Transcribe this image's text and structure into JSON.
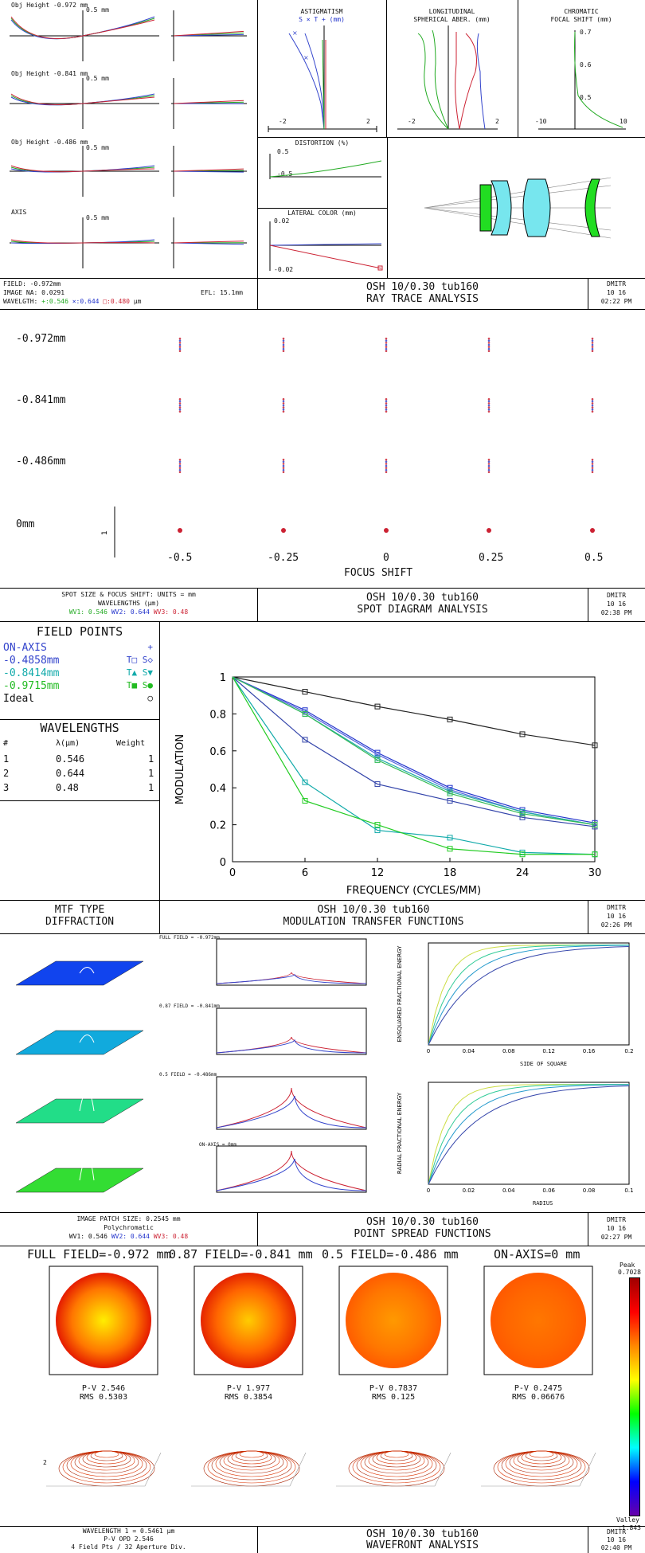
{
  "ray_trace": {
    "fan_labels": [
      "Obj Height -0.972 mm",
      "Obj Height -0.841 mm",
      "Obj Height -0.486 mm",
      "AXIS"
    ],
    "fan_scale": "0.5 mm",
    "astig": {
      "title": "ASTIGMATISM",
      "sub": "S × T + (mm)",
      "ticks": [
        "-2",
        "2"
      ]
    },
    "sph": {
      "title1": "LONGITUDINAL",
      "title2": "SPHERICAL ABER. (mm)",
      "ticks": [
        "-2",
        "2"
      ]
    },
    "chrom": {
      "title1": "CHROMATIC",
      "title2": "FOCAL SHIFT (mm)",
      "ticks": [
        "-10",
        "10"
      ],
      "yticks": [
        "0.7",
        "0.6",
        "0.5"
      ]
    },
    "distortion": {
      "title": "DISTORTION (%)",
      "ticks": [
        "0.5",
        "-0.5"
      ]
    },
    "lateral": {
      "title": "LATERAL COLOR (mm)",
      "ticks": [
        "0.02",
        "-0.02"
      ]
    },
    "footer": {
      "field": "FIELD: -0.972mm",
      "na": "IMAGE NA: 0.0291",
      "efl": "EFL: 15.1mm",
      "wl_prefix": "WAVELGTH:",
      "wl1": "+:0.546",
      "wl2": "×:0.644",
      "wl3": "□:0.480",
      "wl_unit": "μm",
      "title1": "OSH 10/0.30 tub160",
      "title2": "RAY TRACE ANALYSIS",
      "user": "DMITR",
      "date": "10 16",
      "time": "02:22 PM"
    }
  },
  "spot": {
    "rows": [
      "-0.972mm",
      "-0.841mm",
      "-0.486mm",
      "0mm"
    ],
    "xvals": [
      "-0.5",
      "-0.25",
      "0",
      "0.25",
      "0.5"
    ],
    "xlabel": "FOCUS SHIFT",
    "scale": "1",
    "footer": {
      "l1": "SPOT SIZE & FOCUS SHIFT: UNITS = mm",
      "l2": "WAVELENGTHS (μm)",
      "wv1": "WV1: 0.546",
      "wv2": "WV2: 0.644",
      "wv3": "WV3: 0.48",
      "title1": "OSH 10/0.30 tub160",
      "title2": "SPOT DIAGRAM ANALYSIS",
      "user": "DMITR",
      "date": "10 16",
      "time": "02:38 PM"
    }
  },
  "mtf": {
    "fp_title": "FIELD POINTS",
    "fields": [
      {
        "name": "ON-AXIS",
        "sym": "+",
        "color": "#3344cc"
      },
      {
        "name": "-0.4858mm",
        "sym": "T□ S◇",
        "color": "#3344cc"
      },
      {
        "name": "-0.8414mm",
        "sym": "T▲ S▼",
        "color": "#11aaaa"
      },
      {
        "name": "-0.9715mm",
        "sym": "T■ S●",
        "color": "#22bb22"
      },
      {
        "name": "Ideal",
        "sym": "○",
        "color": "#111111"
      }
    ],
    "wl_title": "WAVELENGTHS",
    "wl_head": [
      "#",
      "λ(μm)",
      "Weight"
    ],
    "wl_rows": [
      [
        "1",
        "0.546",
        "1"
      ],
      [
        "2",
        "0.644",
        "1"
      ],
      [
        "3",
        "0.48",
        "1"
      ]
    ],
    "type1": "MTF TYPE",
    "type2": "DIFFRACTION",
    "title1": "OSH 10/0.30 tub160",
    "title2": "MODULATION TRANSFER FUNCTIONS",
    "user": "DMITR",
    "date": "10 16",
    "time": "02:26 PM"
  },
  "chart_data": {
    "type": "line",
    "title": "",
    "xlabel": "FREQUENCY (CYCLES/MM)",
    "ylabel": "MODULATION",
    "xlim": [
      0,
      30
    ],
    "ylim": [
      0,
      1
    ],
    "xticks": [
      0,
      6,
      12,
      18,
      24,
      30
    ],
    "yticks": [
      0,
      0.2,
      0.4,
      0.6,
      0.8,
      1
    ],
    "x": [
      0,
      6,
      12,
      18,
      24,
      30
    ],
    "series": [
      {
        "name": "Ideal",
        "color": "#222222",
        "values": [
          1,
          0.92,
          0.84,
          0.77,
          0.69,
          0.63
        ]
      },
      {
        "name": "ON-AXIS",
        "color": "#2233cc",
        "values": [
          1,
          0.82,
          0.59,
          0.4,
          0.28,
          0.21
        ]
      },
      {
        "name": "-0.4858mm T",
        "color": "#3344aa",
        "values": [
          1,
          0.66,
          0.42,
          0.33,
          0.24,
          0.19
        ]
      },
      {
        "name": "-0.4858mm S",
        "color": "#5566dd",
        "values": [
          1,
          0.81,
          0.58,
          0.39,
          0.27,
          0.2
        ]
      },
      {
        "name": "-0.8414mm T",
        "color": "#11aaaa",
        "values": [
          1,
          0.43,
          0.17,
          0.13,
          0.05,
          0.04
        ]
      },
      {
        "name": "-0.8414mm S",
        "color": "#22aaaa",
        "values": [
          1,
          0.8,
          0.56,
          0.38,
          0.27,
          0.2
        ]
      },
      {
        "name": "-0.9715mm T",
        "color": "#22cc22",
        "values": [
          1,
          0.33,
          0.2,
          0.07,
          0.04,
          0.04
        ]
      },
      {
        "name": "-0.9715mm S",
        "color": "#33bb55",
        "values": [
          1,
          0.8,
          0.55,
          0.37,
          0.26,
          0.2
        ]
      }
    ]
  },
  "psf": {
    "labels": [
      "FULL FIELD = -0.972mm",
      "0.87 FIELD = -0.841mm",
      "0.5 FIELD = -0.486mm",
      "ON-AXIS = 0mm"
    ],
    "ee_ylabel": "ENSQUARED FRACTIONAL ENERGY",
    "ee_xlabel": "SIDE OF SQUARE",
    "ee_ticks": [
      "0",
      "0.04",
      "0.08",
      "0.12",
      "0.16",
      "0.2"
    ],
    "re_ylabel": "RADIAL FRACTIONAL ENERGY",
    "re_xlabel": "RADIUS",
    "re_ticks": [
      "0",
      "0.02",
      "0.04",
      "0.06",
      "0.08",
      "0.1"
    ],
    "footer": {
      "l1": "IMAGE PATCH SIZE: 0.2545 mm",
      "l2": "Polychromatic",
      "wv1": "WV1: 0.546",
      "wv2": "WV2: 0.644",
      "wv3": "WV3: 0.48",
      "title1": "OSH 10/0.30 tub160",
      "title2": "POINT SPREAD FUNCTIONS",
      "user": "DMITR",
      "date": "10 16",
      "time": "02:27 PM"
    }
  },
  "wavefront": {
    "headers": [
      "FULL FIELD=-0.972 mm",
      "0.87 FIELD=-0.841 mm",
      "0.5 FIELD=-0.486 mm",
      "ON-AXIS=0 mm"
    ],
    "stats": [
      {
        "pv": "P-V 2.546",
        "rms": "RMS 0.5303"
      },
      {
        "pv": "P-V 1.977",
        "rms": "RMS 0.3854"
      },
      {
        "pv": "P-V 0.7837",
        "rms": "RMS 0.125"
      },
      {
        "pv": "P-V 0.2475",
        "rms": "RMS 0.06676"
      }
    ],
    "peak_label": "Peak",
    "peak_val": "0.7028",
    "valley_label": "Valley",
    "valley_val": "-1.843",
    "axis_label": "2",
    "footer": {
      "l1": "WAVELENGTH 1 = 0.5461 μm",
      "l2": "P-V OPD 2.546",
      "l3": "4 Field Pts / 32 Aperture Div.",
      "title1": "OSH 10/0.30 tub160",
      "title2": "WAVEFRONT ANALYSIS",
      "user": "DMITR",
      "date": "10 16",
      "time": "02:40 PM"
    }
  }
}
